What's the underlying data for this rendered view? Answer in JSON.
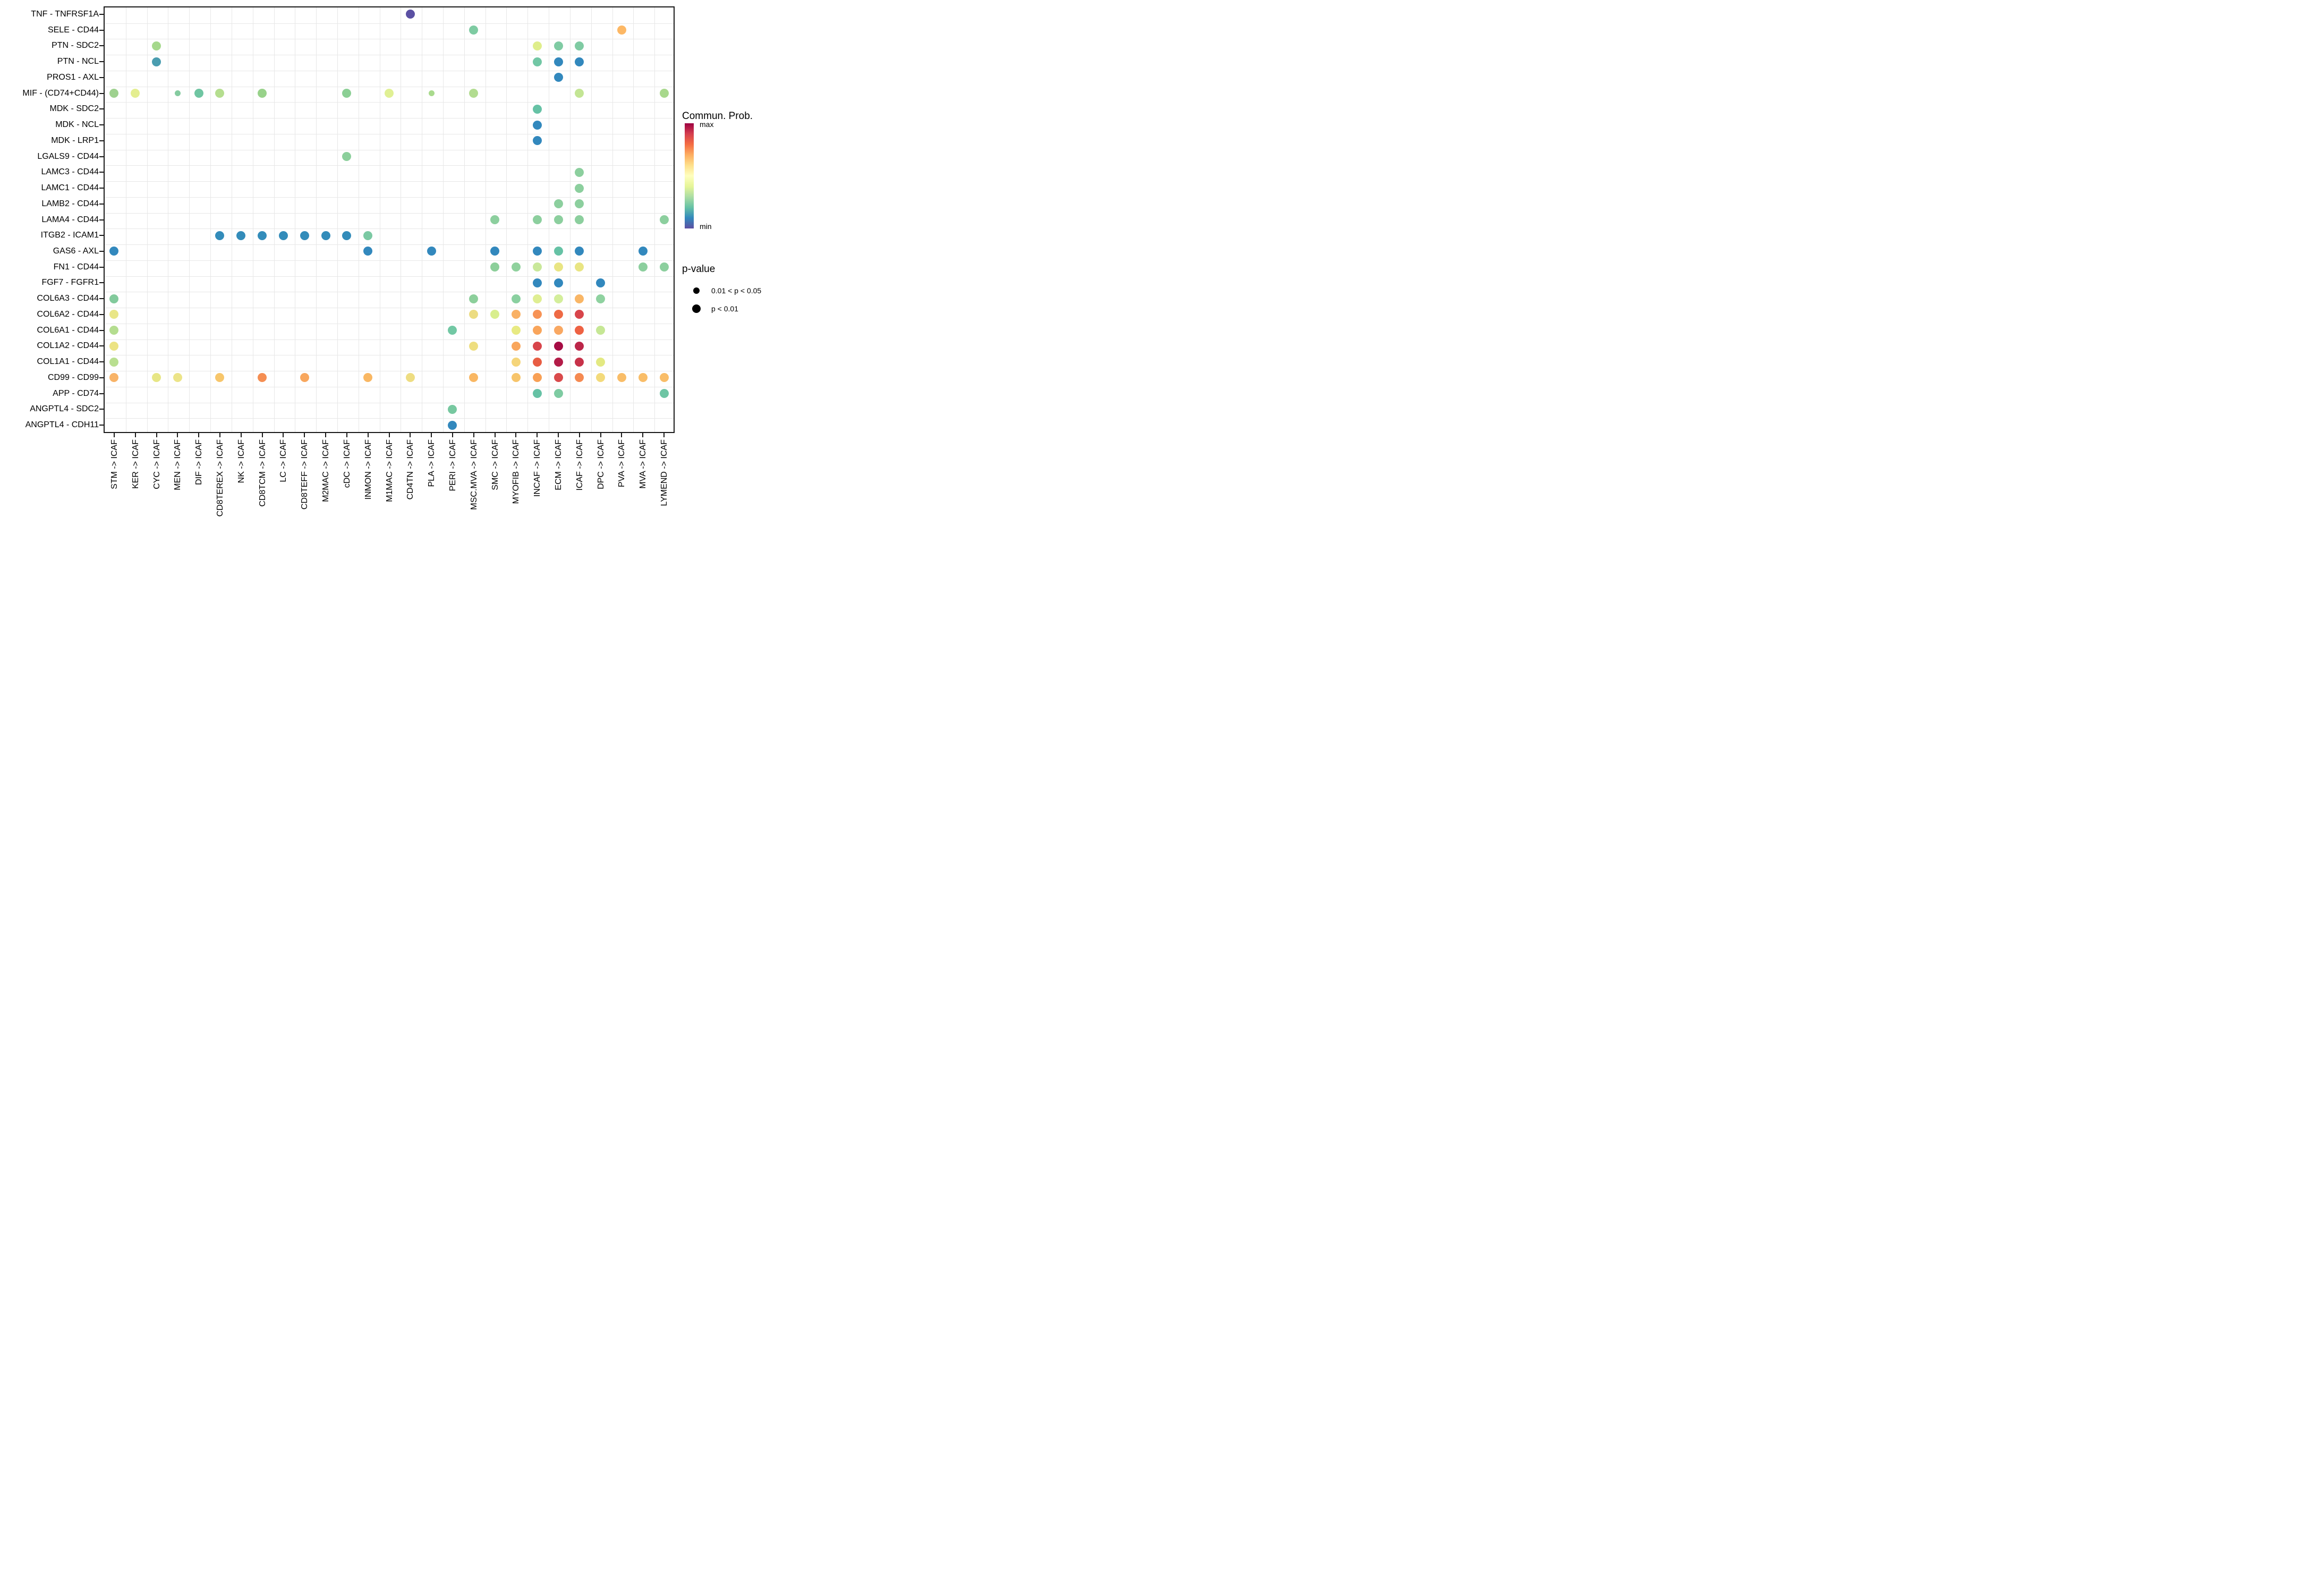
{
  "chart_data": {
    "type": "scatter",
    "title": "",
    "x_categories": [
      "STM -> ICAF",
      "KER -> ICAF",
      "CYC -> ICAF",
      "MEN -> ICAF",
      "DIF -> ICAF",
      "CD8TEREX -> ICAF",
      "NK -> ICAF",
      "CD8TCM -> ICAF",
      "LC -> ICAF",
      "CD8TEFF -> ICAF",
      "M2MAC -> ICAF",
      "cDC -> ICAF",
      "INMON -> ICAF",
      "M1MAC -> ICAF",
      "CD4TN -> ICAF",
      "PLA -> ICAF",
      "PERI -> ICAF",
      "MSC.MVA -> ICAF",
      "SMC -> ICAF",
      "MYOFIB -> ICAF",
      "INCAF -> ICAF",
      "ECM -> ICAF",
      "ICAF -> ICAF",
      "DPC -> ICAF",
      "PVA -> ICAF",
      "MVA -> ICAF",
      "LYMEND -> ICAF"
    ],
    "y_categories": [
      "TNF - TNFRSF1A",
      "SELE - CD44",
      "PTN - SDC2",
      "PTN - NCL",
      "PROS1 - AXL",
      "MIF - (CD74+CD44)",
      "MDK - SDC2",
      "MDK - NCL",
      "MDK - LRP1",
      "LGALS9 - CD44",
      "LAMC3 - CD44",
      "LAMC1 - CD44",
      "LAMB2 - CD44",
      "LAMA4 - CD44",
      "ITGB2 - ICAM1",
      "GAS6 - AXL",
      "FN1 - CD44",
      "FGF7 - FGFR1",
      "COL6A3 - CD44",
      "COL6A2 - CD44",
      "COL6A1 - CD44",
      "COL1A2 - CD44",
      "COL1A1 - CD44",
      "CD99 - CD99",
      "APP - CD74",
      "ANGPTL4 - SDC2",
      "ANGPTL4 - CDH11"
    ],
    "size_legend": {
      "lg": "p < 0.01",
      "sm": "0.01 < p < 0.05"
    },
    "color_scale": {
      "name": "Spectral reversed",
      "min_color": "#5e4fa2",
      "max_color": "#9e0142"
    },
    "points": [
      [
        0,
        14,
        "#5b50a3",
        "lg"
      ],
      [
        1,
        17,
        "#7ecba2",
        "lg"
      ],
      [
        1,
        24,
        "#fdb865",
        "lg"
      ],
      [
        2,
        2,
        "#a5d88c",
        "lg"
      ],
      [
        2,
        20,
        "#dfee8b",
        "lg"
      ],
      [
        2,
        21,
        "#7fcba3",
        "lg"
      ],
      [
        2,
        22,
        "#7fcba3",
        "lg"
      ],
      [
        3,
        2,
        "#4a9db0",
        "lg"
      ],
      [
        3,
        20,
        "#72c7a5",
        "lg"
      ],
      [
        3,
        21,
        "#3288bd",
        "lg"
      ],
      [
        3,
        22,
        "#3288bd",
        "lg"
      ],
      [
        4,
        21,
        "#3288bd",
        "lg"
      ],
      [
        5,
        0,
        "#9ed18f",
        "lg"
      ],
      [
        5,
        1,
        "#e4ee90",
        "lg"
      ],
      [
        5,
        3,
        "#85cba0",
        "sm"
      ],
      [
        5,
        4,
        "#6fc5a2",
        "lg"
      ],
      [
        5,
        5,
        "#b5de8f",
        "lg"
      ],
      [
        5,
        7,
        "#98d28a",
        "lg"
      ],
      [
        5,
        11,
        "#8bcf94",
        "lg"
      ],
      [
        5,
        13,
        "#e0f094",
        "lg"
      ],
      [
        5,
        15,
        "#a9da8d",
        "sm"
      ],
      [
        5,
        17,
        "#b2dc90",
        "lg"
      ],
      [
        5,
        22,
        "#c3e594",
        "lg"
      ],
      [
        5,
        26,
        "#a8d88c",
        "lg"
      ],
      [
        6,
        20,
        "#66c2a5",
        "lg"
      ],
      [
        7,
        20,
        "#3288bd",
        "lg"
      ],
      [
        8,
        20,
        "#3288bd",
        "lg"
      ],
      [
        9,
        11,
        "#8bcf9b",
        "lg"
      ],
      [
        10,
        22,
        "#8ccf9e",
        "lg"
      ],
      [
        11,
        22,
        "#8ccf9e",
        "lg"
      ],
      [
        12,
        21,
        "#8ccf9e",
        "lg"
      ],
      [
        12,
        22,
        "#8ccf9e",
        "lg"
      ],
      [
        13,
        18,
        "#8ccf9e",
        "lg"
      ],
      [
        13,
        20,
        "#8ccf9e",
        "lg"
      ],
      [
        13,
        21,
        "#8ccf9e",
        "lg"
      ],
      [
        13,
        22,
        "#8ccf9e",
        "lg"
      ],
      [
        13,
        26,
        "#8ccf9e",
        "lg"
      ],
      [
        14,
        5,
        "#338cba",
        "lg"
      ],
      [
        14,
        6,
        "#338cba",
        "lg"
      ],
      [
        14,
        7,
        "#338cba",
        "lg"
      ],
      [
        14,
        8,
        "#338cba",
        "lg"
      ],
      [
        14,
        9,
        "#338cba",
        "lg"
      ],
      [
        14,
        10,
        "#338cba",
        "lg"
      ],
      [
        14,
        11,
        "#338cba",
        "lg"
      ],
      [
        14,
        12,
        "#7bc9a3",
        "lg"
      ],
      [
        15,
        0,
        "#3288bd",
        "lg"
      ],
      [
        15,
        12,
        "#3288bd",
        "lg"
      ],
      [
        15,
        15,
        "#3288bd",
        "lg"
      ],
      [
        15,
        18,
        "#3288bd",
        "lg"
      ],
      [
        15,
        20,
        "#3288bd",
        "lg"
      ],
      [
        15,
        21,
        "#66c2a5",
        "lg"
      ],
      [
        15,
        22,
        "#3288bd",
        "lg"
      ],
      [
        15,
        25,
        "#3288bd",
        "lg"
      ],
      [
        16,
        18,
        "#8ccf9a",
        "lg"
      ],
      [
        16,
        19,
        "#8fd19d",
        "lg"
      ],
      [
        16,
        20,
        "#c9e89a",
        "lg"
      ],
      [
        16,
        21,
        "#e9e583",
        "lg"
      ],
      [
        16,
        22,
        "#e9e583",
        "lg"
      ],
      [
        16,
        25,
        "#8ccf9e",
        "lg"
      ],
      [
        16,
        26,
        "#8ccf9e",
        "lg"
      ],
      [
        17,
        20,
        "#3288bd",
        "lg"
      ],
      [
        17,
        21,
        "#3288bd",
        "lg"
      ],
      [
        17,
        23,
        "#3288bd",
        "lg"
      ],
      [
        18,
        0,
        "#82ca9c",
        "lg"
      ],
      [
        18,
        17,
        "#8ccf9b",
        "lg"
      ],
      [
        18,
        19,
        "#8ad0a0",
        "lg"
      ],
      [
        18,
        20,
        "#dfee92",
        "lg"
      ],
      [
        18,
        21,
        "#d4ee9b",
        "lg"
      ],
      [
        18,
        22,
        "#f9b666",
        "lg"
      ],
      [
        18,
        23,
        "#8fd2a0",
        "lg"
      ],
      [
        19,
        0,
        "#e9e687",
        "lg"
      ],
      [
        19,
        17,
        "#ecdc81",
        "lg"
      ],
      [
        19,
        18,
        "#d8ee8e",
        "lg"
      ],
      [
        19,
        19,
        "#f9b165",
        "lg"
      ],
      [
        19,
        20,
        "#f79356",
        "lg"
      ],
      [
        19,
        21,
        "#ee6a45",
        "lg"
      ],
      [
        19,
        22,
        "#d8454b",
        "lg"
      ],
      [
        20,
        0,
        "#b4dd8f",
        "lg"
      ],
      [
        20,
        16,
        "#72c8a4",
        "lg"
      ],
      [
        20,
        19,
        "#e8ea82",
        "lg"
      ],
      [
        20,
        20,
        "#f9a55b",
        "lg"
      ],
      [
        20,
        21,
        "#f9a862",
        "lg"
      ],
      [
        20,
        22,
        "#ee6243",
        "lg"
      ],
      [
        20,
        23,
        "#c6e795",
        "lg"
      ],
      [
        21,
        0,
        "#ece383",
        "lg"
      ],
      [
        21,
        17,
        "#eede7f",
        "lg"
      ],
      [
        21,
        19,
        "#f9a65c",
        "lg"
      ],
      [
        21,
        20,
        "#d8454b",
        "lg"
      ],
      [
        21,
        21,
        "#a60c44",
        "lg"
      ],
      [
        21,
        22,
        "#bc2649",
        "lg"
      ],
      [
        22,
        0,
        "#b9df90",
        "lg"
      ],
      [
        22,
        19,
        "#f5d57a",
        "lg"
      ],
      [
        22,
        20,
        "#e85d43",
        "lg"
      ],
      [
        22,
        21,
        "#b31c48",
        "lg"
      ],
      [
        22,
        22,
        "#c73249",
        "lg"
      ],
      [
        22,
        23,
        "#e3e982",
        "lg"
      ],
      [
        23,
        0,
        "#f8b367",
        "lg"
      ],
      [
        23,
        2,
        "#e7e685",
        "lg"
      ],
      [
        23,
        3,
        "#ece488",
        "lg"
      ],
      [
        23,
        5,
        "#f7c66b",
        "lg"
      ],
      [
        23,
        7,
        "#f58e52",
        "lg"
      ],
      [
        23,
        9,
        "#f8a75e",
        "lg"
      ],
      [
        23,
        12,
        "#f9b763",
        "lg"
      ],
      [
        23,
        14,
        "#eedd82",
        "lg"
      ],
      [
        23,
        17,
        "#f9b763",
        "lg"
      ],
      [
        23,
        19,
        "#f7c46a",
        "lg"
      ],
      [
        23,
        20,
        "#f8a055",
        "lg"
      ],
      [
        23,
        21,
        "#d94a4b",
        "lg"
      ],
      [
        23,
        22,
        "#f58a51",
        "lg"
      ],
      [
        23,
        23,
        "#f3da7b",
        "lg"
      ],
      [
        23,
        24,
        "#f9bd68",
        "lg"
      ],
      [
        23,
        25,
        "#f9bd68",
        "lg"
      ],
      [
        23,
        26,
        "#f9bd68",
        "lg"
      ],
      [
        24,
        20,
        "#66c2a5",
        "lg"
      ],
      [
        24,
        21,
        "#7ecba2",
        "lg"
      ],
      [
        24,
        26,
        "#6ec5a4",
        "lg"
      ],
      [
        25,
        16,
        "#77c8a0",
        "lg"
      ],
      [
        26,
        16,
        "#3288bd",
        "lg"
      ]
    ]
  },
  "legend": {
    "colorbar_title": "Commun. Prob.",
    "max_label": "max",
    "min_label": "min",
    "colorbar_stops_top_to_bottom": [
      "#9e0142",
      "#d53e4f",
      "#f46d43",
      "#fdae61",
      "#fee08b",
      "#ffffbf",
      "#e6f598",
      "#abdda4",
      "#66c2a5",
      "#3288bd",
      "#5e4fa2"
    ],
    "pvalue_title": "p-value",
    "p_items": [
      {
        "label": "0.01 < p < 0.05",
        "size": "sm"
      },
      {
        "label": "p < 0.01",
        "size": "lg"
      }
    ]
  }
}
